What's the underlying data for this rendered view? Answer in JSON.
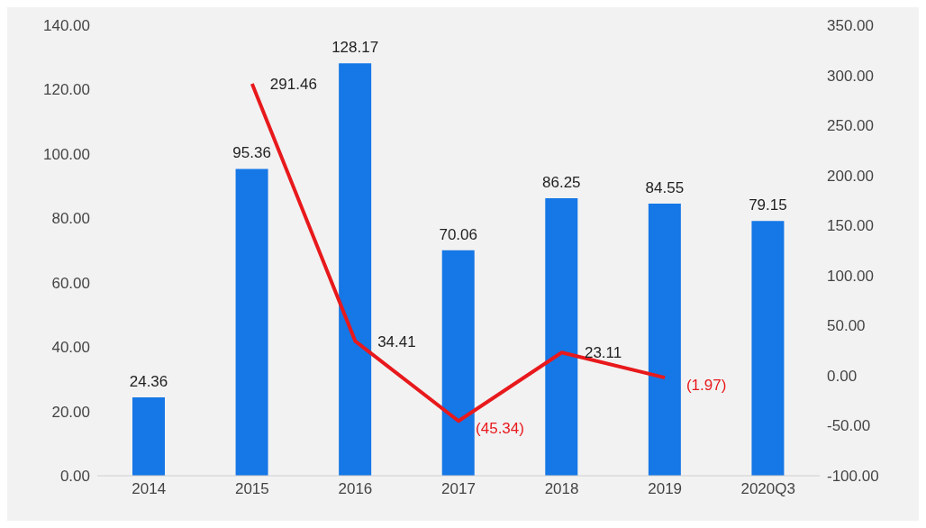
{
  "chart_data": {
    "type": "bar",
    "categories": [
      "2014",
      "2015",
      "2016",
      "2017",
      "2018",
      "2019",
      "2020Q3"
    ],
    "series": [
      {
        "color": "#1677e6",
        "values": [
          24.36,
          95.36,
          128.17,
          70.06,
          86.25,
          84.55,
          79.15
        ],
        "value_labels": [
          "24.36",
          "95.36",
          "128.17",
          "70.06",
          "86.25",
          "84.55",
          "79.15"
        ]
      },
      {
        "type": "line",
        "axis": "y2",
        "color": "#e8191c",
        "values": [
          null,
          291.46,
          34.41,
          -45.34,
          23.11,
          -1.97,
          null
        ],
        "value_labels": [
          null,
          "291.46",
          "34.41",
          "(45.34)",
          "23.11",
          "(1.97)",
          null
        ]
      }
    ],
    "ylim": [
      0,
      140
    ],
    "yticks": [
      {
        "value": 0,
        "label": "0.00"
      },
      {
        "value": 20,
        "label": "20.00"
      },
      {
        "value": 40,
        "label": "40.00"
      },
      {
        "value": 60,
        "label": "60.00"
      },
      {
        "value": 80,
        "label": "80.00"
      },
      {
        "value": 100,
        "label": "100.00"
      },
      {
        "value": 120,
        "label": "120.00"
      },
      {
        "value": 140,
        "label": "140.00"
      }
    ],
    "y2lim": [
      -100,
      350
    ],
    "y2ticks": [
      {
        "value": -100,
        "label": "-100.00"
      },
      {
        "value": -50,
        "label": "-50.00"
      },
      {
        "value": 0,
        "label": "0.00"
      },
      {
        "value": 50,
        "label": "50.00"
      },
      {
        "value": 100,
        "label": "100.00"
      },
      {
        "value": 150,
        "label": "150.00"
      },
      {
        "value": 200,
        "label": "200.00"
      },
      {
        "value": 250,
        "label": "250.00"
      },
      {
        "value": 300,
        "label": "300.00"
      },
      {
        "value": 350,
        "label": "350.00"
      }
    ]
  }
}
